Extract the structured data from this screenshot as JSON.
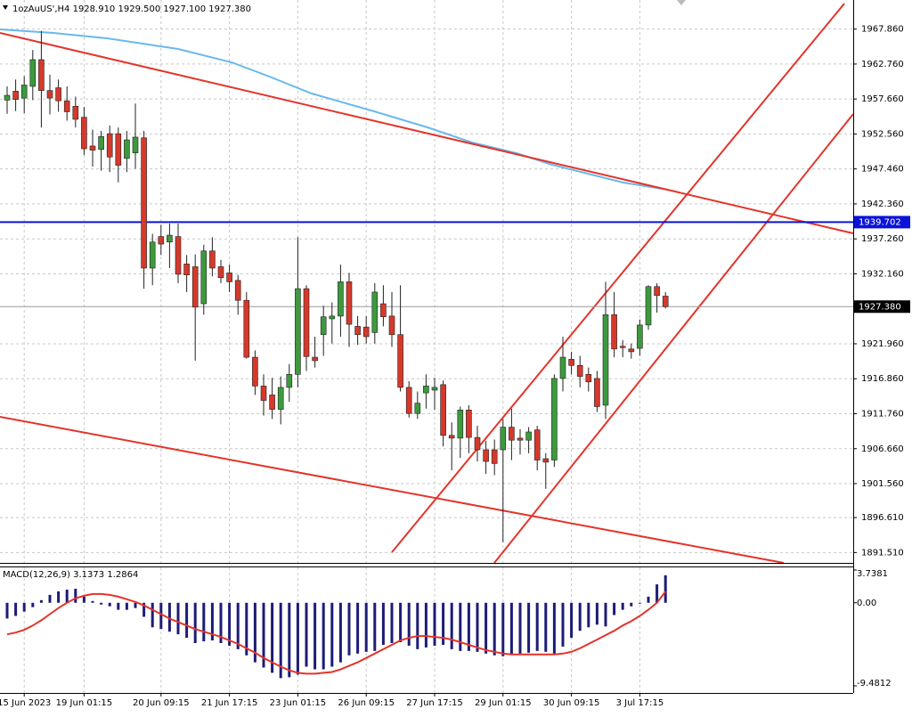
{
  "chart_data": {
    "type": "candlestick",
    "title": "1ozAuUS',H4",
    "header_values": [
      "1928.910",
      "1929.500",
      "1927.100",
      "1927.380"
    ],
    "categories": [
      null,
      null,
      "15 Jun 2023",
      null,
      null,
      null,
      null,
      null,
      null,
      "19 Jun 01:15",
      null,
      null,
      null,
      null,
      null,
      null,
      null,
      null,
      "20 Jun 09:15",
      null,
      null,
      null,
      null,
      null,
      null,
      null,
      "21 Jun 17:15",
      null,
      null,
      null,
      null,
      null,
      null,
      null,
      "23 Jun 01:15",
      null,
      null,
      null,
      null,
      null,
      null,
      null,
      "26 Jun 09:15",
      null,
      null,
      null,
      null,
      null,
      null,
      null,
      "27 Jun 17:15",
      null,
      null,
      null,
      null,
      null,
      null,
      null,
      "29 Jun 01:15",
      null,
      null,
      null,
      null,
      null,
      null,
      null,
      "30 Jun 09:15",
      null,
      null,
      null,
      null,
      null,
      null,
      null,
      "3 Jul 17:15",
      null,
      null,
      null
    ],
    "open": [
      1957.5,
      1958.8,
      1957.8,
      1959.5,
      1963.4,
      1958.9,
      1959.3,
      1957.4,
      1956.6,
      1955.0,
      1950.8,
      1950.3,
      1952.6,
      1952.6,
      1949.0,
      1949.8,
      1952.0,
      1933.0,
      1937.6,
      1936.8,
      1937.6,
      1933.6,
      1933.2,
      1927.8,
      1935.5,
      1933.2,
      1932.3,
      1931.2,
      1928.3,
      1920.0,
      1915.8,
      1914.5,
      1912.4,
      1915.6,
      1917.5,
      1930.0,
      1920.0,
      1923.3,
      1925.6,
      1926.0,
      1931.0,
      1924.5,
      1924.4,
      1923.6,
      1927.8,
      1926.0,
      1923.3,
      1915.6,
      1911.8,
      1914.8,
      1915.2,
      1916.0,
      1908.6,
      1908.2,
      1912.3,
      1908.3,
      1906.5,
      1906.5,
      1906.5,
      1909.8,
      1908.2,
      1907.9,
      1909.4,
      1905.2,
      1905.0,
      1916.9,
      1919.7,
      1918.8,
      1917.5,
      1916.9,
      1913.0,
      1926.2,
      1921.6,
      1921.2,
      1921.3,
      1924.7,
      1930.3,
      1928.91
    ],
    "high": [
      1959.5,
      1960.5,
      1961.0,
      1964.8,
      1967.6,
      1961.2,
      1960.5,
      1959.5,
      1958.0,
      1956.5,
      1953.2,
      1953.0,
      1953.8,
      1953.5,
      1953.0,
      1957.0,
      1953.0,
      1938.0,
      1939.3,
      1939.5,
      1939.5,
      1934.9,
      1935.0,
      1936.4,
      1937.5,
      1934.2,
      1933.5,
      1932.0,
      1929.5,
      1921.0,
      1917.5,
      1917.0,
      1917.2,
      1919.0,
      1937.5,
      1930.5,
      1923.0,
      1927.5,
      1928.0,
      1933.5,
      1932.3,
      1926.0,
      1926.0,
      1930.8,
      1930.5,
      1929.5,
      1930.5,
      1916.5,
      1915.0,
      1917.5,
      1917.0,
      1916.6,
      1910.5,
      1912.8,
      1913.0,
      1910.0,
      1907.8,
      1908.0,
      1911.0,
      1912.5,
      1909.5,
      1909.8,
      1910.0,
      1906.0,
      1917.5,
      1923.0,
      1920.8,
      1920.2,
      1918.5,
      1918.0,
      1931.0,
      1929.5,
      1922.5,
      1922.0,
      1925.5,
      1930.5,
      1930.8,
      1929.5
    ],
    "low": [
      1955.5,
      1955.9,
      1955.6,
      1957.5,
      1953.5,
      1955.4,
      1955.8,
      1954.5,
      1953.5,
      1949.5,
      1947.8,
      1947.2,
      1947.0,
      1945.5,
      1947.0,
      1947.5,
      1930.0,
      1930.5,
      1934.9,
      1933.0,
      1930.8,
      1929.5,
      1919.5,
      1926.2,
      1931.8,
      1930.8,
      1929.5,
      1926.2,
      1919.8,
      1914.5,
      1911.5,
      1911.0,
      1910.2,
      1913.5,
      1915.6,
      1918.0,
      1918.5,
      1920.2,
      1922.0,
      1923.0,
      1921.5,
      1921.8,
      1922.0,
      1922.0,
      1924.5,
      1921.5,
      1915.0,
      1911.2,
      1911.0,
      1912.5,
      1912.3,
      1907.0,
      1903.5,
      1905.3,
      1906.0,
      1904.8,
      1903.0,
      1902.8,
      1893.0,
      1905.0,
      1905.8,
      1906.0,
      1903.5,
      1900.8,
      1904.0,
      1915.0,
      1917.5,
      1915.6,
      1915.0,
      1912.0,
      1911.0,
      1920.0,
      1920.0,
      1919.8,
      1920.2,
      1924.0,
      1926.5,
      1927.1
    ],
    "close": [
      1958.2,
      1957.6,
      1959.7,
      1963.4,
      1958.9,
      1957.8,
      1957.4,
      1955.8,
      1954.7,
      1950.4,
      1950.2,
      1952.2,
      1949.2,
      1948.0,
      1951.7,
      1952.1,
      1933.0,
      1936.8,
      1936.5,
      1937.8,
      1932.1,
      1932.0,
      1927.3,
      1935.5,
      1933.0,
      1931.6,
      1931.0,
      1928.3,
      1920.0,
      1915.8,
      1913.7,
      1912.4,
      1915.6,
      1917.5,
      1930.0,
      1920.1,
      1919.5,
      1925.9,
      1926.0,
      1931.0,
      1924.8,
      1923.3,
      1923.0,
      1929.5,
      1925.9,
      1923.3,
      1915.6,
      1911.8,
      1913.3,
      1915.8,
      1915.6,
      1908.6,
      1908.2,
      1912.3,
      1908.3,
      1906.5,
      1904.8,
      1904.5,
      1909.8,
      1907.9,
      1907.9,
      1909.1,
      1905.0,
      1904.7,
      1916.9,
      1920.0,
      1918.8,
      1917.2,
      1916.4,
      1912.8,
      1926.2,
      1921.2,
      1921.4,
      1920.8,
      1924.7,
      1930.3,
      1929.0,
      1927.38
    ],
    "up_color": "#3c9a3c",
    "down_color": "#d5392b",
    "ylim": [
      1890.0,
      1972.1
    ],
    "yticks": [
      {
        "value": 1967.86,
        "label": "1967.860"
      },
      {
        "value": 1962.76,
        "label": "1962.760"
      },
      {
        "value": 1957.66,
        "label": "1957.660"
      },
      {
        "value": 1952.56,
        "label": "1952.560"
      },
      {
        "value": 1947.46,
        "label": "1947.460"
      },
      {
        "value": 1942.36,
        "label": "1942.360"
      },
      {
        "value": 1937.26,
        "label": "1937.260"
      },
      {
        "value": 1932.16,
        "label": "1932.160"
      },
      {
        "value": 1921.96,
        "label": "1921.960"
      },
      {
        "value": 1916.86,
        "label": "1916.860"
      },
      {
        "value": 1911.76,
        "label": "1911.760"
      },
      {
        "value": 1906.66,
        "label": "1906.660"
      },
      {
        "value": 1901.56,
        "label": "1901.560"
      },
      {
        "value": 1896.61,
        "label": "1896.610"
      },
      {
        "value": 1891.51,
        "label": "1891.510"
      }
    ],
    "grid": true,
    "hlines": [
      {
        "value": 1939.702,
        "color": "#0a14d8"
      }
    ],
    "last_price": {
      "value": 1927.38,
      "label": "1927.380"
    },
    "macd": {
      "title": "MACD(12,26,9)",
      "current": [
        3.1373,
        1.2864
      ],
      "histogram": [
        -1.8,
        -1.5,
        -1.0,
        -0.5,
        0.3,
        0.9,
        1.3,
        1.5,
        1.6,
        0.7,
        0.2,
        -0.2,
        -0.4,
        -0.8,
        -0.8,
        -0.6,
        -1.6,
        -2.8,
        -3.0,
        -3.3,
        -3.6,
        -4.0,
        -4.6,
        -4.4,
        -4.3,
        -4.6,
        -4.9,
        -5.3,
        -6.0,
        -6.8,
        -7.4,
        -8.0,
        -8.6,
        -8.5,
        -8.2,
        -7.3,
        -7.6,
        -7.6,
        -7.3,
        -6.8,
        -6.0,
        -5.8,
        -5.6,
        -5.5,
        -4.8,
        -4.6,
        -4.5,
        -4.9,
        -5.3,
        -5.1,
        -4.9,
        -4.8,
        -5.3,
        -5.5,
        -5.5,
        -5.6,
        -5.8,
        -6.0,
        -6.1,
        -5.9,
        -5.8,
        -5.7,
        -5.5,
        -5.6,
        -5.8,
        -5.0,
        -4.0,
        -3.2,
        -2.8,
        -2.5,
        -2.7,
        -1.4,
        -0.8,
        -0.4,
        -0.1,
        0.7,
        2.1,
        3.1373
      ],
      "signal": [
        -3.6,
        -3.4,
        -3.1,
        -2.6,
        -2.0,
        -1.3,
        -0.6,
        0.0,
        0.5,
        0.8,
        1.0,
        1.0,
        0.9,
        0.7,
        0.4,
        0.1,
        -0.3,
        -0.8,
        -1.3,
        -1.8,
        -2.2,
        -2.6,
        -3.0,
        -3.3,
        -3.6,
        -3.9,
        -4.3,
        -4.7,
        -5.2,
        -5.7,
        -6.3,
        -6.8,
        -7.3,
        -7.7,
        -8.0,
        -8.1,
        -8.1,
        -8.0,
        -7.9,
        -7.6,
        -7.2,
        -6.8,
        -6.3,
        -5.8,
        -5.3,
        -4.8,
        -4.3,
        -4.0,
        -3.8,
        -3.8,
        -3.9,
        -4.0,
        -4.2,
        -4.5,
        -4.8,
        -5.1,
        -5.4,
        -5.6,
        -5.8,
        -5.9,
        -5.9,
        -5.9,
        -5.9,
        -5.9,
        -5.9,
        -5.8,
        -5.6,
        -5.2,
        -4.7,
        -4.2,
        -3.7,
        -3.2,
        -2.6,
        -2.1,
        -1.5,
        -0.8,
        0.0,
        1.2864
      ],
      "histogram_color": "#1c1c78",
      "signal_color": "#e3342a",
      "ylim": [
        -9.4812,
        3.7381
      ],
      "yticks": [
        3.7381,
        {
          "value": 0,
          "label": "0.00"
        },
        -9.4812
      ]
    }
  }
}
